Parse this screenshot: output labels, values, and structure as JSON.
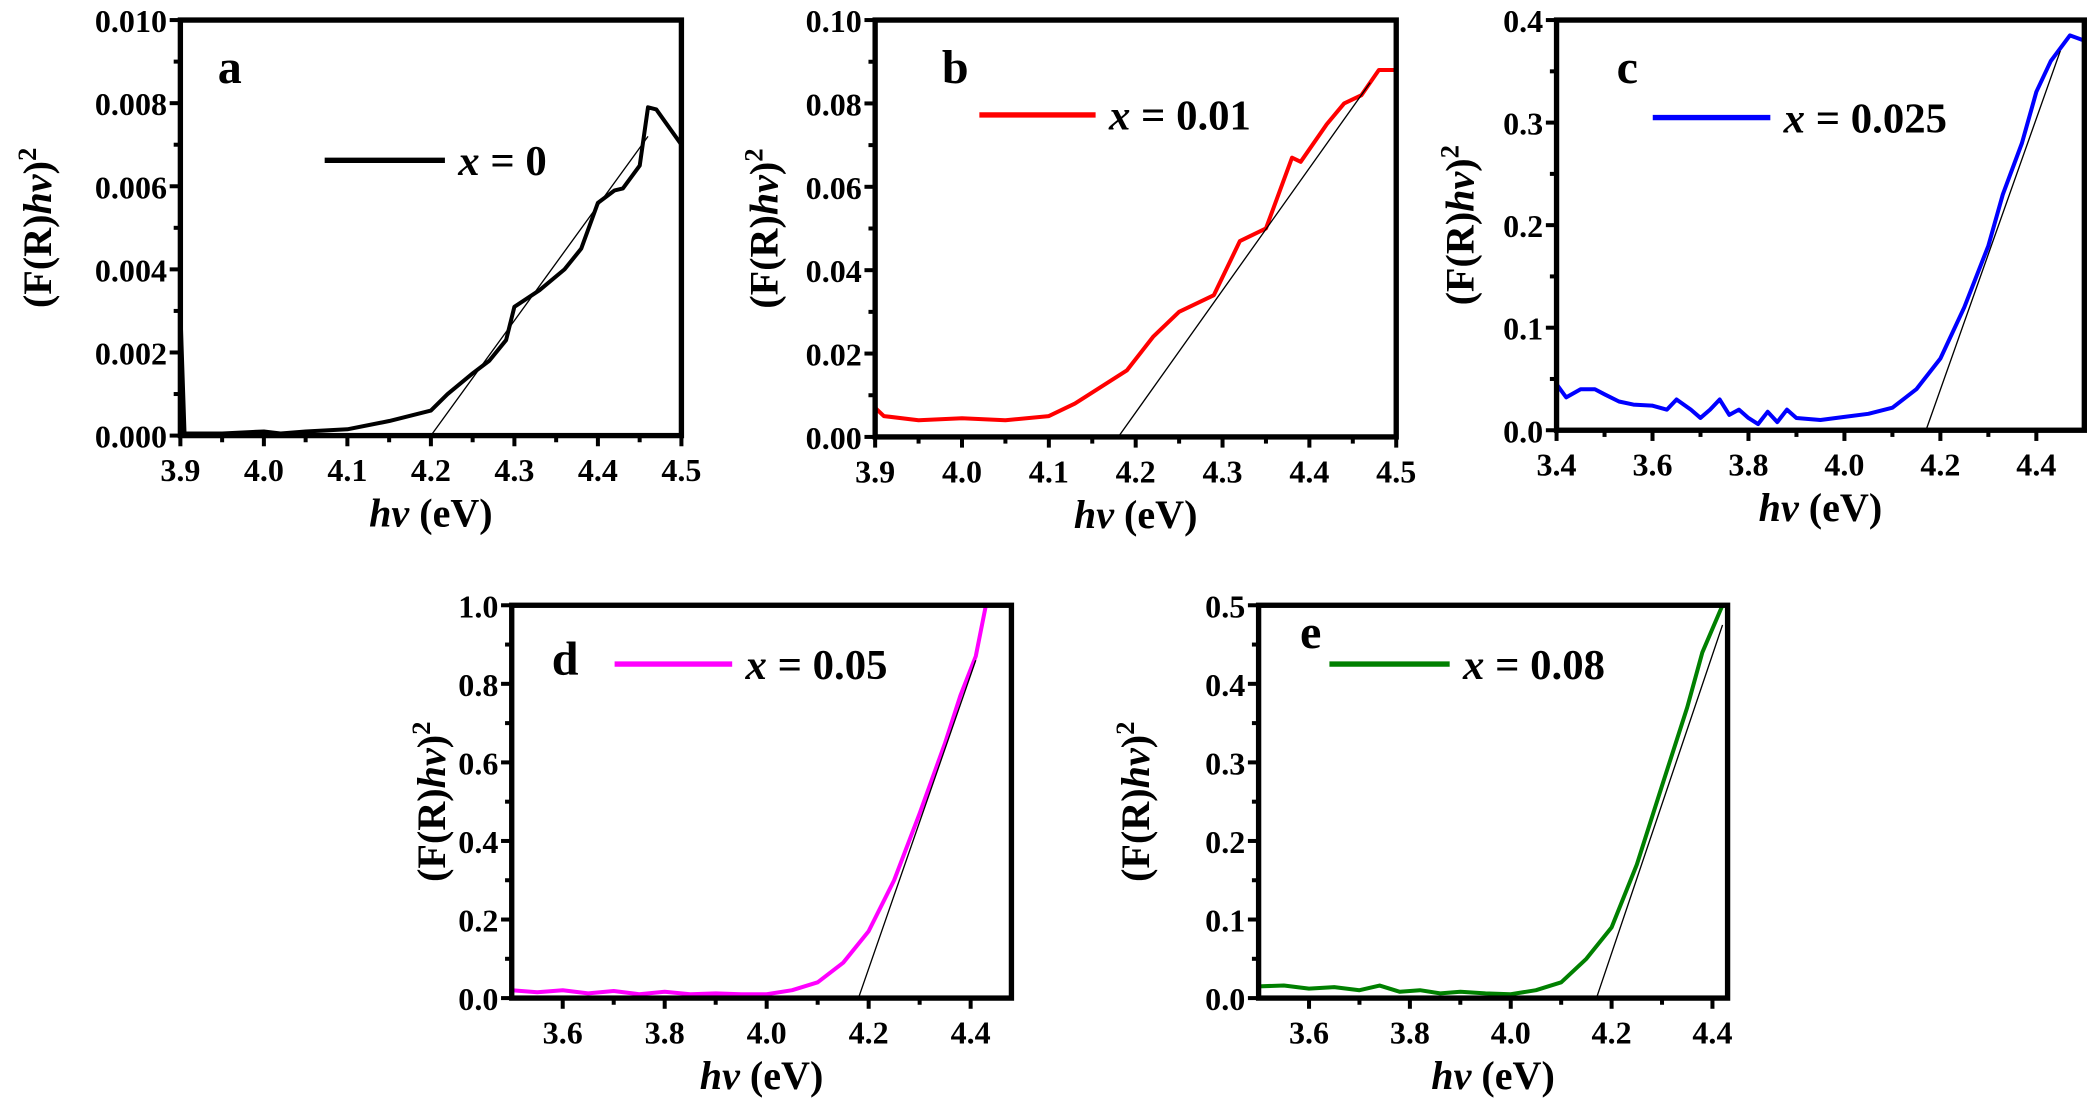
{
  "chart_data": [
    {
      "type": "line",
      "panel": "a",
      "color": "#000000",
      "legend": {
        "var": "x",
        "text": " = 0"
      },
      "xlabel": {
        "italic": "hv",
        "rest": " (eV)"
      },
      "ylabel": {
        "pre": "(F(R)",
        "italic": "hv",
        "post": ")",
        "sup": "2"
      },
      "xlim": [
        3.9,
        4.5
      ],
      "ylim": [
        0,
        0.01
      ],
      "xticks": [
        3.9,
        4.0,
        4.1,
        4.2,
        4.3,
        4.4,
        4.5
      ],
      "xtick_labels": [
        "3.9",
        "4.0",
        "4.1",
        "4.2",
        "4.3",
        "4.4",
        "4.5"
      ],
      "yticks": [
        0,
        0.002,
        0.004,
        0.006,
        0.008,
        0.01
      ],
      "ytick_labels": [
        "0.000",
        "0.002",
        "0.004",
        "0.006",
        "0.008",
        "0.010"
      ],
      "x": [
        3.9,
        3.905,
        3.95,
        4.0,
        4.02,
        4.05,
        4.1,
        4.15,
        4.2,
        4.22,
        4.25,
        4.27,
        4.29,
        4.3,
        4.33,
        4.36,
        4.38,
        4.4,
        4.42,
        4.43,
        4.45,
        4.46,
        4.47,
        4.5
      ],
      "y": [
        0.003,
        5e-05,
        5e-05,
        0.0001,
        5e-05,
        0.0001,
        0.00015,
        0.00035,
        0.0006,
        0.001,
        0.0015,
        0.0018,
        0.0023,
        0.0031,
        0.0035,
        0.004,
        0.0045,
        0.0056,
        0.0059,
        0.00595,
        0.0065,
        0.0079,
        0.00785,
        0.007
      ],
      "fit": {
        "x": [
          4.2,
          4.46
        ],
        "y": [
          0,
          0.0072
        ]
      }
    },
    {
      "type": "line",
      "panel": "b",
      "color": "#ff0000",
      "legend": {
        "var": "x",
        "text": " = 0.01"
      },
      "xlabel": {
        "italic": "hv",
        "rest": " (eV)"
      },
      "ylabel": {
        "pre": "(F(R)",
        "italic": "hv",
        "post": ")",
        "sup": "2"
      },
      "xlim": [
        3.9,
        4.5
      ],
      "ylim": [
        0,
        0.1
      ],
      "xticks": [
        3.9,
        4.0,
        4.1,
        4.2,
        4.3,
        4.4,
        4.5
      ],
      "xtick_labels": [
        "3.9",
        "4.0",
        "4.1",
        "4.2",
        "4.3",
        "4.4",
        "4.5"
      ],
      "yticks": [
        0,
        0.02,
        0.04,
        0.06,
        0.08,
        0.1
      ],
      "ytick_labels": [
        "0.00",
        "0.02",
        "0.04",
        "0.06",
        "0.08",
        "0.10"
      ],
      "x": [
        3.9,
        3.91,
        3.95,
        4.0,
        4.05,
        4.1,
        4.13,
        4.16,
        4.19,
        4.22,
        4.25,
        4.29,
        4.32,
        4.35,
        4.38,
        4.39,
        4.42,
        4.44,
        4.46,
        4.48,
        4.5
      ],
      "y": [
        0.007,
        0.005,
        0.004,
        0.0045,
        0.004,
        0.005,
        0.008,
        0.012,
        0.016,
        0.024,
        0.03,
        0.034,
        0.047,
        0.05,
        0.067,
        0.066,
        0.075,
        0.08,
        0.082,
        0.088,
        0.088
      ],
      "fit": {
        "x": [
          4.18,
          4.47
        ],
        "y": [
          0,
          0.085
        ]
      }
    },
    {
      "type": "line",
      "panel": "c",
      "color": "#0000ff",
      "legend": {
        "var": "x",
        "text": " = 0.025"
      },
      "xlabel": {
        "italic": "hv",
        "rest": " (eV)"
      },
      "ylabel": {
        "pre": "(F(R)",
        "italic": "hv",
        "post": ")",
        "sup": "2"
      },
      "xlim": [
        3.4,
        4.5
      ],
      "ylim": [
        0,
        0.4
      ],
      "xticks": [
        3.4,
        3.6,
        3.8,
        4.0,
        4.2,
        4.4
      ],
      "xtick_labels": [
        "3.4",
        "3.6",
        "3.8",
        "4.0",
        "4.2",
        "4.4"
      ],
      "yticks": [
        0,
        0.1,
        0.2,
        0.3,
        0.4
      ],
      "ytick_labels": [
        "0.0",
        "0.1",
        "0.2",
        "0.3",
        "0.4"
      ],
      "x": [
        3.4,
        3.42,
        3.45,
        3.48,
        3.5,
        3.53,
        3.56,
        3.6,
        3.63,
        3.65,
        3.68,
        3.7,
        3.72,
        3.74,
        3.76,
        3.78,
        3.8,
        3.82,
        3.84,
        3.86,
        3.88,
        3.9,
        3.95,
        4.0,
        4.05,
        4.1,
        4.15,
        4.2,
        4.25,
        4.3,
        4.33,
        4.37,
        4.4,
        4.43,
        4.47,
        4.5
      ],
      "y": [
        0.045,
        0.032,
        0.04,
        0.04,
        0.035,
        0.028,
        0.025,
        0.024,
        0.02,
        0.03,
        0.02,
        0.012,
        0.02,
        0.03,
        0.015,
        0.02,
        0.012,
        0.006,
        0.018,
        0.008,
        0.02,
        0.012,
        0.01,
        0.013,
        0.016,
        0.022,
        0.04,
        0.07,
        0.12,
        0.18,
        0.23,
        0.28,
        0.33,
        0.36,
        0.385,
        0.38
      ],
      "fit": {
        "x": [
          4.17,
          4.45
        ],
        "y": [
          0,
          0.37
        ]
      }
    },
    {
      "type": "line",
      "panel": "d",
      "color": "#ff00ff",
      "legend": {
        "var": "x",
        "text": " = 0.05"
      },
      "xlabel": {
        "italic": "hv",
        "rest": " (eV)"
      },
      "ylabel": {
        "pre": "(F(R)",
        "italic": "hv",
        "post": ")",
        "sup": "2"
      },
      "xlim": [
        3.5,
        4.48
      ],
      "ylim": [
        0,
        1.0
      ],
      "xticks": [
        3.6,
        3.8,
        4.0,
        4.2,
        4.4
      ],
      "xtick_labels": [
        "3.6",
        "3.8",
        "4.0",
        "4.2",
        "4.4"
      ],
      "yticks": [
        0,
        0.2,
        0.4,
        0.6,
        0.8,
        1.0
      ],
      "ytick_labels": [
        "0.0",
        "0.2",
        "0.4",
        "0.6",
        "0.8",
        "1.0"
      ],
      "x": [
        3.5,
        3.55,
        3.6,
        3.65,
        3.7,
        3.75,
        3.8,
        3.85,
        3.9,
        3.95,
        4.0,
        4.05,
        4.1,
        4.15,
        4.2,
        4.25,
        4.3,
        4.35,
        4.38,
        4.41,
        4.43
      ],
      "y": [
        0.02,
        0.015,
        0.02,
        0.012,
        0.018,
        0.01,
        0.016,
        0.01,
        0.012,
        0.01,
        0.01,
        0.02,
        0.04,
        0.09,
        0.17,
        0.3,
        0.47,
        0.65,
        0.77,
        0.87,
        1.0
      ],
      "fit": {
        "x": [
          4.18,
          4.41
        ],
        "y": [
          0,
          0.86
        ]
      }
    },
    {
      "type": "line",
      "panel": "e",
      "color": "#008000",
      "legend": {
        "var": "x",
        "text": " = 0.08"
      },
      "xlabel": {
        "italic": "hv",
        "rest": " (eV)"
      },
      "ylabel": {
        "pre": "(F(R)",
        "italic": "hv",
        "post": ")",
        "sup": "2"
      },
      "xlim": [
        3.5,
        4.43
      ],
      "ylim": [
        0,
        0.5
      ],
      "xticks": [
        3.6,
        3.8,
        4.0,
        4.2,
        4.4
      ],
      "xtick_labels": [
        "3.6",
        "3.8",
        "4.0",
        "4.2",
        "4.4"
      ],
      "yticks": [
        0,
        0.1,
        0.2,
        0.3,
        0.4,
        0.5
      ],
      "ytick_labels": [
        "0.0",
        "0.1",
        "0.2",
        "0.3",
        "0.4",
        "0.5"
      ],
      "x": [
        3.5,
        3.55,
        3.6,
        3.65,
        3.7,
        3.74,
        3.78,
        3.82,
        3.86,
        3.9,
        3.95,
        4.0,
        4.05,
        4.1,
        4.15,
        4.2,
        4.25,
        4.3,
        4.35,
        4.38,
        4.42
      ],
      "y": [
        0.015,
        0.016,
        0.012,
        0.014,
        0.01,
        0.016,
        0.008,
        0.01,
        0.006,
        0.008,
        0.006,
        0.005,
        0.01,
        0.02,
        0.05,
        0.09,
        0.17,
        0.27,
        0.37,
        0.44,
        0.5
      ],
      "fit": {
        "x": [
          4.17,
          4.42
        ],
        "y": [
          0,
          0.475
        ]
      }
    }
  ]
}
